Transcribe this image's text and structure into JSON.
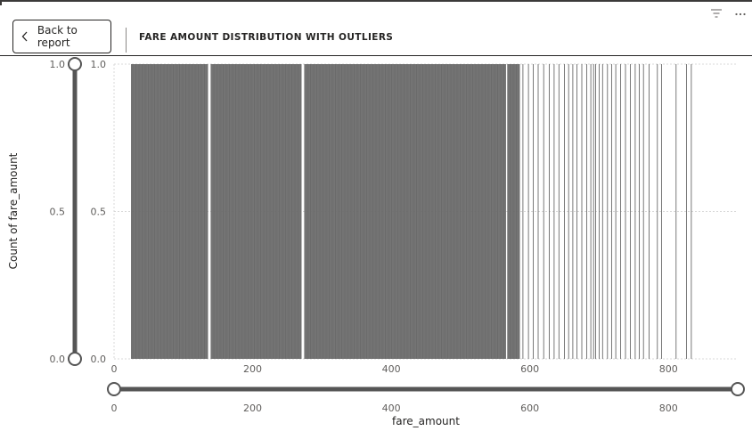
{
  "header": {
    "back_label": "Back to report",
    "title": "FARE AMOUNT DISTRIBUTION WITH OUTLIERS"
  },
  "icons": {
    "back": "chevron-left-icon",
    "filter": "filter-icon",
    "more": "more-options-icon"
  },
  "colors": {
    "bar": "#6b6b6b",
    "slider": "#555555",
    "grid": "#d9d9d9"
  },
  "y_slider": {
    "min_label": "0.0",
    "max_label": "1.0"
  },
  "x_slider": {
    "min": 0,
    "max": 900
  },
  "chart_data": {
    "type": "bar",
    "title": "",
    "xlabel": "fare_amount",
    "ylabel": "Count of fare_amount",
    "xlim": [
      0,
      900
    ],
    "ylim": [
      0,
      1
    ],
    "x_ticks": [
      "0",
      "200",
      "400",
      "600",
      "800"
    ],
    "y_ticks": [
      "0.0",
      "0.5",
      "1.0"
    ],
    "grid": true,
    "dense_bands": [
      [
        25,
        135
      ],
      [
        140,
        270
      ],
      [
        275,
        565
      ],
      [
        568,
        585
      ]
    ],
    "sparse_values": [
      590,
      598,
      605,
      612,
      620,
      628,
      635,
      642,
      650,
      656,
      662,
      668,
      675,
      682,
      688,
      692,
      695,
      700,
      705,
      712,
      718,
      724,
      731,
      738,
      745,
      752,
      758,
      764,
      772,
      784,
      790,
      811,
      826,
      833
    ],
    "value": 1,
    "dense_step": 1
  }
}
